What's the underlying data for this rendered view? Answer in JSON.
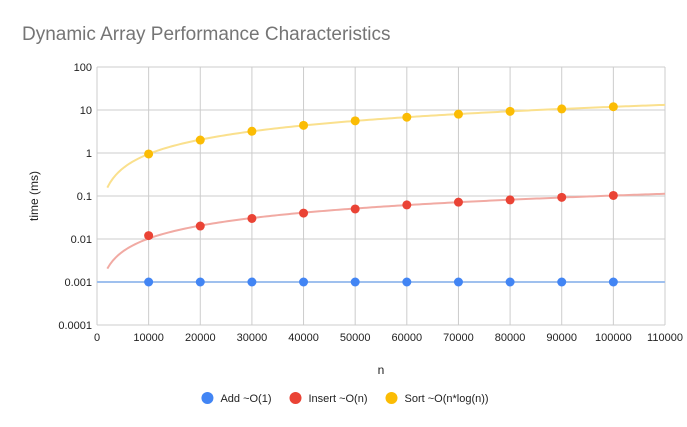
{
  "chart_data": {
    "type": "scatter",
    "title": "Dynamic Array Performance Characteristics",
    "xlabel": "n",
    "ylabel": "time (ms)",
    "xlim": [
      0,
      110000
    ],
    "ylim": [
      0.0001,
      100
    ],
    "y_scale": "log",
    "x_ticks": [
      "0",
      "10000",
      "20000",
      "30000",
      "40000",
      "50000",
      "60000",
      "70000",
      "80000",
      "90000",
      "100000",
      "110000"
    ],
    "y_ticks": [
      "0.0001",
      "0.001",
      "0.01",
      "0.1",
      "1",
      "10",
      "100"
    ],
    "grid": true,
    "legend_position": "bottom",
    "x": [
      10000,
      20000,
      30000,
      40000,
      50000,
      60000,
      70000,
      80000,
      90000,
      100000
    ],
    "series": [
      {
        "name": "Add ~O(1)",
        "color": "#4285f4",
        "trendline_color": "#9fc0ee",
        "trendline": "constant",
        "values": [
          0.001,
          0.001,
          0.001,
          0.001,
          0.001,
          0.001,
          0.001,
          0.001,
          0.001,
          0.001
        ]
      },
      {
        "name": "Insert ~O(n)",
        "color": "#ea4335",
        "trendline_color": "#f1aaa3",
        "trendline": "linear",
        "values": [
          0.012,
          0.02,
          0.03,
          0.04,
          0.05,
          0.062,
          0.072,
          0.081,
          0.093,
          0.103
        ]
      },
      {
        "name": "Sort ~O(n*log(n))",
        "color": "#fbbc04",
        "trendline_color": "#fae08d",
        "trendline": "nlogn",
        "values": [
          0.95,
          2.0,
          3.2,
          4.4,
          5.6,
          6.8,
          8.0,
          9.3,
          10.6,
          11.9
        ]
      }
    ]
  }
}
